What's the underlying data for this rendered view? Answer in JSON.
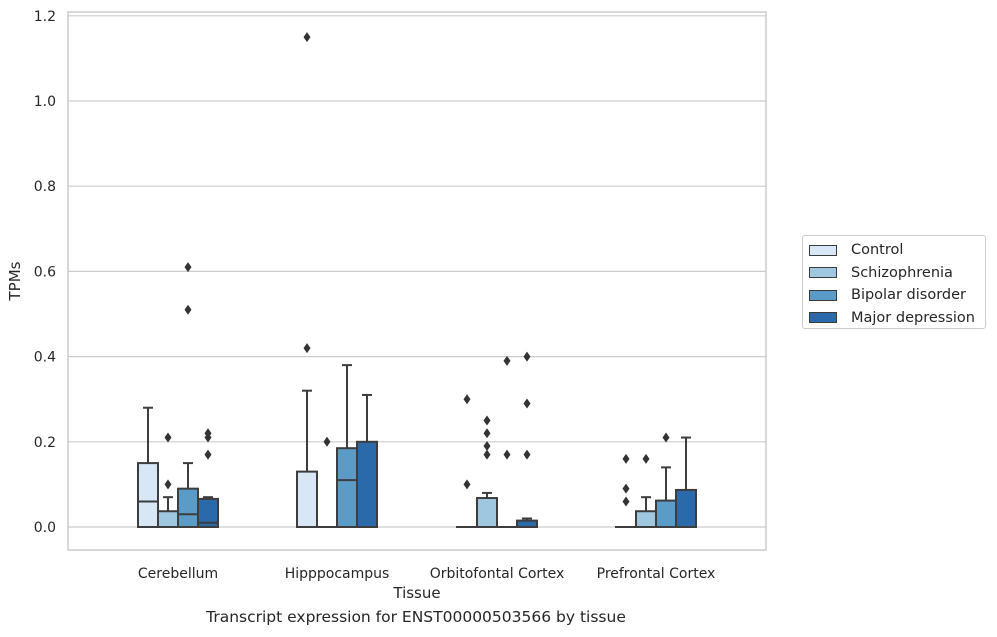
{
  "chart_data": {
    "type": "box",
    "title": "",
    "caption": "Transcript expression for ENST00000503566 by tissue",
    "xlabel": "Tissue",
    "ylabel": "TPMs",
    "ylim": [
      -0.055,
      1.21
    ],
    "yticks": [
      0.0,
      0.2,
      0.4,
      0.6,
      0.8,
      1.0,
      1.2
    ],
    "ytick_labels": [
      "0.0",
      "0.2",
      "0.4",
      "0.6",
      "0.8",
      "1.0",
      "1.2"
    ],
    "grid": "horizontal",
    "legend_placement": "center-right outside",
    "categories": [
      "Cerebellum",
      "Hipppocampus",
      "Orbitofontal Cortex",
      "Prefrontal Cortex"
    ],
    "series": [
      {
        "name": "Control",
        "color": "#d8e7f5",
        "boxes": [
          {
            "q1": 0.0,
            "median": 0.06,
            "q3": 0.15,
            "whisker_low": 0.0,
            "whisker_high": 0.28,
            "outliers": []
          },
          {
            "q1": 0.0,
            "median": 0.0,
            "q3": 0.13,
            "whisker_low": 0.0,
            "whisker_high": 0.32,
            "outliers": [
              0.42,
              1.15
            ]
          },
          {
            "q1": 0.0,
            "median": 0.0,
            "q3": 0.0,
            "whisker_low": 0.0,
            "whisker_high": 0.0,
            "outliers": [
              0.1,
              0.3
            ]
          },
          {
            "q1": 0.0,
            "median": 0.0,
            "q3": 0.0,
            "whisker_low": 0.0,
            "whisker_high": 0.0,
            "outliers": [
              0.06,
              0.09,
              0.16
            ]
          }
        ]
      },
      {
        "name": "Schizophrenia",
        "color": "#9fc8e0",
        "boxes": [
          {
            "q1": 0.0,
            "median": 0.0,
            "q3": 0.037,
            "whisker_low": 0.0,
            "whisker_high": 0.07,
            "outliers": [
              0.1,
              0.21
            ]
          },
          {
            "q1": 0.0,
            "median": 0.0,
            "q3": 0.0,
            "whisker_low": 0.0,
            "whisker_high": 0.0,
            "outliers": [
              0.2
            ]
          },
          {
            "q1": 0.0,
            "median": 0.0,
            "q3": 0.068,
            "whisker_low": 0.0,
            "whisker_high": 0.08,
            "outliers": [
              0.17,
              0.19,
              0.22,
              0.25
            ]
          },
          {
            "q1": 0.0,
            "median": 0.0,
            "q3": 0.037,
            "whisker_low": 0.0,
            "whisker_high": 0.07,
            "outliers": [
              0.16
            ]
          }
        ]
      },
      {
        "name": "Bipolar disorder",
        "color": "#5b9bc8",
        "boxes": [
          {
            "q1": 0.0,
            "median": 0.03,
            "q3": 0.09,
            "whisker_low": 0.0,
            "whisker_high": 0.15,
            "outliers": [
              0.51,
              0.61
            ]
          },
          {
            "q1": 0.0,
            "median": 0.11,
            "q3": 0.185,
            "whisker_low": 0.0,
            "whisker_high": 0.38,
            "outliers": []
          },
          {
            "q1": 0.0,
            "median": 0.0,
            "q3": 0.0,
            "whisker_low": 0.0,
            "whisker_high": 0.0,
            "outliers": [
              0.17,
              0.39
            ]
          },
          {
            "q1": 0.0,
            "median": 0.0,
            "q3": 0.062,
            "whisker_low": 0.0,
            "whisker_high": 0.14,
            "outliers": [
              0.21
            ]
          }
        ]
      },
      {
        "name": "Major depression",
        "color": "#2a6aab",
        "boxes": [
          {
            "q1": 0.0,
            "median": 0.01,
            "q3": 0.066,
            "whisker_low": 0.0,
            "whisker_high": 0.07,
            "outliers": [
              0.17,
              0.21,
              0.22
            ]
          },
          {
            "q1": 0.0,
            "median": 0.0,
            "q3": 0.2,
            "whisker_low": 0.0,
            "whisker_high": 0.31,
            "outliers": []
          },
          {
            "q1": 0.0,
            "median": 0.0,
            "q3": 0.015,
            "whisker_low": 0.0,
            "whisker_high": 0.02,
            "outliers": [
              0.17,
              0.29,
              0.4
            ]
          },
          {
            "q1": 0.0,
            "median": 0.0,
            "q3": 0.087,
            "whisker_low": 0.0,
            "whisker_high": 0.21,
            "outliers": []
          }
        ]
      }
    ]
  }
}
